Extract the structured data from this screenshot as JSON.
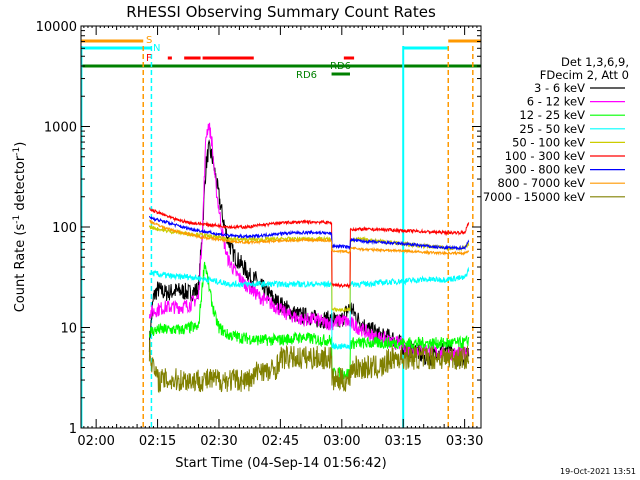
{
  "chart_data": {
    "type": "line",
    "title": "RHESSI Observing Summary Count Rates",
    "xlabel": "Start Time (04-Sep-14 01:56:42)",
    "ylabel_main": "Count Rate (s",
    "ylabel_sup1": "-1",
    "ylabel_mid": " detector",
    "ylabel_sup2": "-1",
    "ylabel_end": ")",
    "footer": "19-Oct-2021 13:51",
    "y_scale": "log",
    "ylim": [
      1,
      10000
    ],
    "xlim_minutes": [
      -3.7,
      94
    ],
    "x_ticks": [
      {
        "label": "02:00",
        "minute": 0
      },
      {
        "label": "02:15",
        "minute": 15
      },
      {
        "label": "02:30",
        "minute": 30
      },
      {
        "label": "02:45",
        "minute": 45
      },
      {
        "label": "03:00",
        "minute": 60
      },
      {
        "label": "03:15",
        "minute": 75
      },
      {
        "label": "03:30",
        "minute": 90
      }
    ],
    "y_ticks": [
      {
        "label": "1",
        "value": 1
      },
      {
        "label": "10",
        "value": 10
      },
      {
        "label": "100",
        "value": 100
      },
      {
        "label": "1000",
        "value": 1000
      },
      {
        "label": "10000",
        "value": 10000
      }
    ],
    "legend_header": [
      "Det 1,3,6,9,",
      "FDecim 2, Att 0"
    ],
    "series": [
      {
        "name": "3 - 6 keV",
        "color": "#000000",
        "x": [
          13,
          14,
          15,
          17,
          19,
          21,
          23,
          25,
          26,
          26.8,
          27.5,
          28.3,
          29,
          30,
          31,
          32,
          33,
          34,
          35,
          36,
          37,
          38,
          39,
          40,
          42,
          44,
          46,
          48,
          50,
          52,
          54,
          56,
          58,
          59,
          60,
          61,
          62,
          63,
          64,
          66,
          68,
          70,
          72,
          74,
          76,
          78,
          80,
          82,
          84,
          86,
          88,
          90,
          91
        ],
        "y": [
          7,
          20,
          24,
          22,
          23,
          23,
          22,
          24,
          100,
          400,
          600,
          500,
          350,
          200,
          120,
          80,
          60,
          50,
          45,
          40,
          35,
          30,
          30,
          26,
          22,
          18,
          16,
          14,
          13,
          13,
          12,
          12,
          12,
          11,
          12,
          14,
          16,
          14,
          12,
          10,
          9,
          8,
          8,
          7,
          6,
          6,
          5,
          5,
          6,
          6,
          5,
          5,
          6
        ]
      },
      {
        "name": "6 - 12 keV",
        "color": "#ff00ff",
        "x": [
          13,
          15,
          17,
          19,
          21,
          23,
          25,
          26,
          26.8,
          27.5,
          28.3,
          29,
          30,
          31,
          32,
          34,
          36,
          38,
          40,
          42,
          44,
          46,
          48,
          50,
          52,
          54,
          56,
          58,
          60,
          62,
          64,
          66,
          68,
          70,
          72,
          74,
          76,
          78,
          80,
          82,
          84,
          86,
          88,
          90,
          91
        ],
        "y": [
          14,
          15,
          16,
          16,
          16,
          17,
          20,
          100,
          800,
          1050,
          700,
          300,
          150,
          80,
          50,
          35,
          28,
          24,
          20,
          18,
          16,
          14,
          13,
          12,
          12,
          12,
          11,
          11,
          12,
          11,
          10,
          9,
          8,
          8,
          7,
          7,
          6,
          6,
          6,
          6,
          5.5,
          5.5,
          5.5,
          5.5,
          6
        ]
      },
      {
        "name": "12 - 25 keV",
        "color": "#00ff00",
        "x": [
          13,
          15,
          17,
          19,
          21,
          23,
          25,
          26,
          26.5,
          27,
          28,
          29,
          30,
          32,
          35,
          40,
          45,
          50,
          55,
          57.5,
          57.6,
          59,
          60,
          61,
          62,
          62.1,
          64,
          66,
          70,
          75,
          80,
          85,
          88,
          90,
          91
        ],
        "y": [
          9,
          9.5,
          9.5,
          9.5,
          9.5,
          10,
          10,
          28,
          45,
          35,
          20,
          13,
          10,
          8.5,
          8,
          7.5,
          7.5,
          8,
          7.5,
          7.5,
          3.5,
          3.5,
          3.5,
          3.5,
          3.5,
          7,
          7,
          7,
          7,
          7,
          7,
          7,
          7,
          7,
          7.5
        ]
      },
      {
        "name": "25 - 50 keV",
        "color": "#00ffff",
        "x": [
          13,
          15,
          17,
          19,
          21,
          23,
          25,
          27,
          29,
          31,
          33,
          35,
          37,
          40,
          45,
          50,
          55,
          57.5,
          57.6,
          60,
          61,
          62,
          62.1,
          65,
          70,
          75,
          80,
          85,
          88,
          90,
          91
        ],
        "y": [
          35,
          34,
          33,
          32,
          32,
          32,
          31,
          30,
          29,
          28,
          27,
          27,
          27,
          27,
          27,
          27,
          27,
          27,
          6.5,
          6.5,
          6.5,
          6.5,
          27,
          27,
          28,
          29,
          30,
          30,
          31,
          31,
          38
        ]
      },
      {
        "name": "50 - 100 keV",
        "color": "#cccc00",
        "x": [
          13,
          17,
          21,
          25,
          30,
          35,
          40,
          45,
          50,
          55,
          57.5,
          57.6,
          60,
          62,
          62.1,
          65,
          70,
          75,
          80,
          85,
          88,
          90,
          91
        ],
        "y": [
          100,
          92,
          87,
          84,
          78,
          75,
          75,
          76,
          76,
          76,
          75,
          15,
          15,
          15,
          75,
          75,
          72,
          68,
          65,
          62,
          62,
          62,
          68
        ]
      },
      {
        "name": "100 - 300 keV",
        "color": "#ff0000",
        "x": [
          13,
          15,
          17,
          19,
          21,
          23,
          25,
          27,
          29,
          31,
          33,
          35,
          37,
          40,
          45,
          50,
          55,
          57.5,
          57.6,
          60,
          62,
          62.1,
          65,
          70,
          75,
          80,
          85,
          88,
          90,
          91
        ],
        "y": [
          150,
          140,
          130,
          120,
          115,
          110,
          108,
          106,
          104,
          102,
          100,
          100,
          100,
          104,
          110,
          112,
          112,
          110,
          27,
          26,
          26,
          95,
          95,
          94,
          92,
          90,
          88,
          88,
          88,
          110
        ]
      },
      {
        "name": "300 - 800 keV",
        "color": "#0000ff",
        "x": [
          13,
          15,
          17,
          19,
          21,
          23,
          25,
          27,
          29,
          31,
          33,
          35,
          37,
          40,
          45,
          50,
          55,
          57.5,
          57.6,
          60,
          62,
          62.1,
          65,
          70,
          75,
          80,
          85,
          88,
          90,
          91
        ],
        "y": [
          125,
          118,
          112,
          106,
          100,
          96,
          92,
          89,
          86,
          84,
          82,
          81,
          80,
          82,
          86,
          88,
          88,
          86,
          65,
          64,
          63,
          75,
          72,
          70,
          68,
          65,
          62,
          62,
          62,
          72
        ]
      },
      {
        "name": "800 - 7000 keV",
        "color": "#ff9900",
        "x": [
          13,
          15,
          17,
          19,
          21,
          23,
          25,
          27,
          29,
          31,
          33,
          35,
          37,
          40,
          45,
          50,
          55,
          57.5,
          57.6,
          60,
          62,
          62.1,
          65,
          70,
          75,
          80,
          85,
          88,
          90,
          91
        ],
        "y": [
          115,
          105,
          98,
          92,
          88,
          84,
          80,
          78,
          76,
          74,
          72,
          71,
          70,
          71,
          73,
          74,
          74,
          72,
          58,
          57,
          56,
          62,
          60,
          59,
          58,
          56,
          55,
          55,
          55,
          58
        ]
      },
      {
        "name": "7000 - 15000 keV",
        "color": "#808000",
        "x": [
          13,
          14,
          15,
          17,
          19,
          21,
          23,
          25,
          27,
          30,
          33,
          36,
          38,
          40,
          42,
          44,
          45,
          47,
          50,
          53,
          56,
          57.5,
          57.6,
          60,
          62,
          62.1,
          65,
          70,
          72,
          75,
          80,
          85,
          88,
          90,
          91
        ],
        "y": [
          6,
          4,
          3,
          3,
          3,
          3,
          3,
          3,
          3,
          3,
          3,
          3,
          3,
          4,
          3.5,
          4,
          5,
          5,
          5,
          5,
          5,
          5,
          3,
          3,
          3,
          4,
          4,
          4,
          5,
          5,
          5,
          5,
          5,
          5,
          5
        ]
      }
    ],
    "flag_labels": [
      {
        "text": "S",
        "color": "#ff9900"
      },
      {
        "text": "N",
        "color": "#00ffff"
      },
      {
        "text": "F",
        "color": "#ff0000"
      },
      {
        "text": "RD6",
        "color": "#008000"
      },
      {
        "text": "RD6",
        "color": "#008000"
      }
    ]
  }
}
